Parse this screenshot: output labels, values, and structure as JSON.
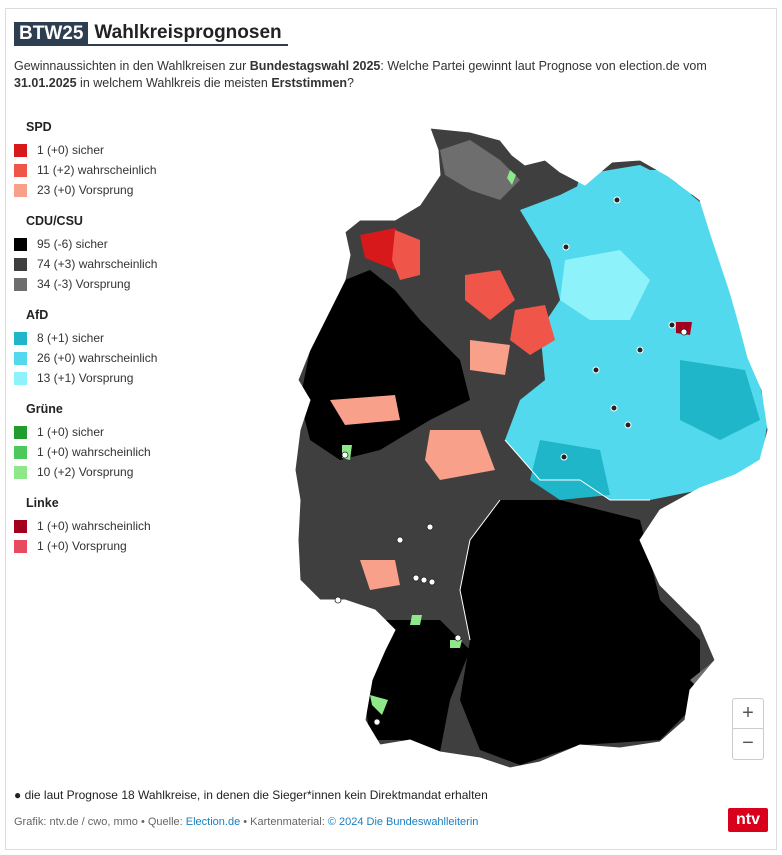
{
  "header": {
    "badge": "BTW25",
    "title": "Wahlkreisprognosen"
  },
  "subtitle": {
    "part1": "Gewinnaussichten in den Wahlkreisen zur ",
    "bold1": "Bundestagswahl 2025",
    "part2": ": Welche Partei gewinnt laut Prognose von election.de vom ",
    "bold2": "31.01.2025",
    "part3": " in welchem Wahlkreis die meisten ",
    "bold3": "Erststimmen",
    "part4": "?"
  },
  "legend": [
    {
      "party": "SPD",
      "items": [
        {
          "label": "1 (+0) sicher",
          "color": "#d7191c"
        },
        {
          "label": "11 (+2) wahrscheinlich",
          "color": "#f0554a"
        },
        {
          "label": "23 (+0) Vorsprung",
          "color": "#f9a08a"
        }
      ]
    },
    {
      "party": "CDU/CSU",
      "items": [
        {
          "label": "95 (-6) sicher",
          "color": "#000000"
        },
        {
          "label": "74 (+3) wahrscheinlich",
          "color": "#3f3f3f"
        },
        {
          "label": "34 (-3) Vorsprung",
          "color": "#6e6e6e"
        }
      ]
    },
    {
      "party": "AfD",
      "items": [
        {
          "label": "8 (+1) sicher",
          "color": "#1fb6c9"
        },
        {
          "label": "26 (+0) wahrscheinlich",
          "color": "#52d9ed"
        },
        {
          "label": "13 (+1) Vorsprung",
          "color": "#8ef2fb"
        }
      ]
    },
    {
      "party": "Grüne",
      "items": [
        {
          "label": "1 (+0) sicher",
          "color": "#1f9e2f"
        },
        {
          "label": "1 (+0) wahrscheinlich",
          "color": "#4cc95a"
        },
        {
          "label": "10 (+2) Vorsprung",
          "color": "#8ee88a"
        }
      ]
    },
    {
      "party": "Linke",
      "items": [
        {
          "label": "1 (+0) wahrscheinlich",
          "color": "#a3001e"
        },
        {
          "label": "1 (+0) Vorsprung",
          "color": "#e84a5f"
        }
      ]
    }
  ],
  "zoom": {
    "in": "+",
    "out": "−"
  },
  "footnote": "● die laut Prognose 18 Wahlkreise, in denen die Sieger*innen kein Direktmandat erhalten",
  "source": {
    "prefix": "Grafik: ntv.de / cwo, mmo • Quelle: ",
    "link1": "Election.de",
    "middle": " • Kartenmaterial: ",
    "link2": "© 2024 Die Bundeswahlleiterin"
  },
  "logo": "ntv",
  "map_colors": {
    "cdu_sicher": "#000000",
    "cdu_wahrsch": "#3f3f3f",
    "cdu_vorsprung": "#6e6e6e",
    "afd_sicher": "#1fb6c9",
    "afd_wahrsch": "#52d9ed",
    "afd_vorsprung": "#8ef2fb",
    "spd_sicher": "#d7191c",
    "spd_wahrsch": "#f0554a",
    "spd_vorsprung": "#f9a08a",
    "gruene": "#8ee88a",
    "linke": "#a3001e"
  }
}
